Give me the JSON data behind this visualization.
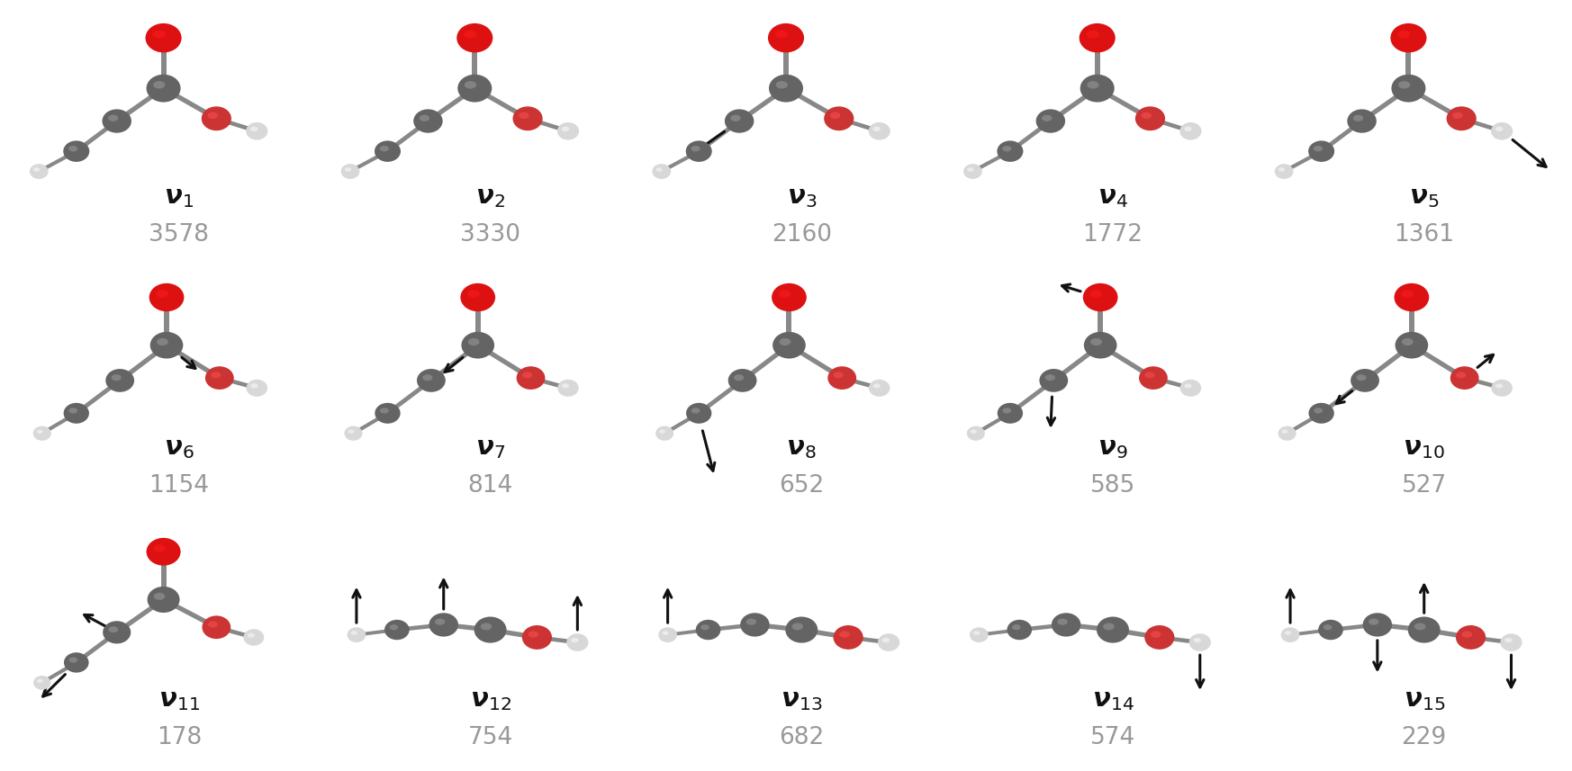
{
  "modes": [
    {
      "subscript": "1",
      "freq": "3578",
      "row": 0,
      "col": 0
    },
    {
      "subscript": "2",
      "freq": "3330",
      "row": 0,
      "col": 1
    },
    {
      "subscript": "3",
      "freq": "2160",
      "row": 0,
      "col": 2
    },
    {
      "subscript": "4",
      "freq": "1772",
      "row": 0,
      "col": 3
    },
    {
      "subscript": "5",
      "freq": "1361",
      "row": 0,
      "col": 4
    },
    {
      "subscript": "6",
      "freq": "1154",
      "row": 1,
      "col": 0
    },
    {
      "subscript": "7",
      "freq": "814",
      "row": 1,
      "col": 1
    },
    {
      "subscript": "8",
      "freq": "652",
      "row": 1,
      "col": 2
    },
    {
      "subscript": "9",
      "freq": "585",
      "row": 1,
      "col": 3
    },
    {
      "subscript": "10",
      "freq": "527",
      "row": 1,
      "col": 4
    },
    {
      "subscript": "11",
      "freq": "178",
      "row": 2,
      "col": 0
    },
    {
      "subscript": "12",
      "freq": "754",
      "row": 2,
      "col": 1
    },
    {
      "subscript": "13",
      "freq": "682",
      "row": 2,
      "col": 2
    },
    {
      "subscript": "14",
      "freq": "574",
      "row": 2,
      "col": 3
    },
    {
      "subscript": "15",
      "freq": "229",
      "row": 2,
      "col": 4
    }
  ],
  "bg_color": "#ffffff",
  "label_color": "#111111",
  "freq_color": "#999999",
  "C_color": "#646464",
  "O_red_color": "#cc1111",
  "O_gray_color": "#b04040",
  "H_color": "#d8d8d8",
  "bond_color": "#888888",
  "arrow_color": "#111111",
  "ncols": 5,
  "nrows": 3,
  "label_fontsize": 21,
  "freq_fontsize": 19,
  "figwidth": 17.46,
  "figheight": 8.57
}
